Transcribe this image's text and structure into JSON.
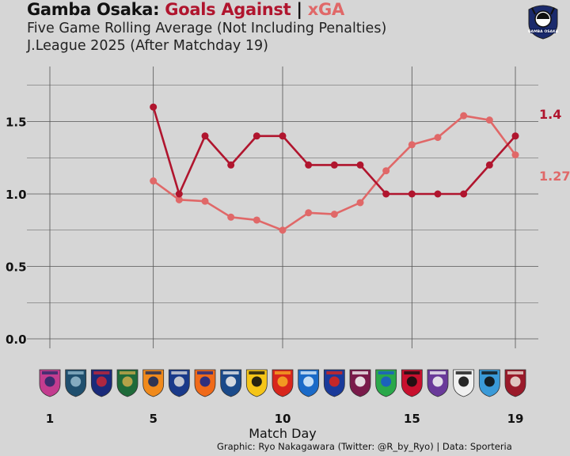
{
  "header": {
    "title_team": "Gamba Osaka:",
    "title_ga": "Goals Against",
    "title_sep": "|",
    "title_xga": "xGA",
    "subtitle_1": "Five Game Rolling Average (Not Including Penalties)",
    "subtitle_2": "J.League 2025 (After Matchday 19)"
  },
  "logo": {
    "text": "GAMBA OSAKA"
  },
  "credit": "Graphic: Ryo Nakagawara (Twitter: @R_by_Ryo) | Data: Sporteria",
  "colors": {
    "ga": "#b0152e",
    "xga": "#e06868",
    "grid": "#555555",
    "background": "#d6d6d6"
  },
  "opponents_icons": [
    "cerezo-osaka-crest",
    "avispa-fukuoka-crest",
    "fc-tokyo-crest",
    "tokyo-verdy-crest",
    "shimizu-s-pulse-crest",
    "yokohama-f-marinos-crest",
    "albirex-niigata-crest",
    "machida-zelvia-crest",
    "kashiwa-reysol-crest",
    "nagoya-grampus-crest",
    "yokohama-fc-crest",
    "fc-tokyo-crest",
    "kyoto-sanga-crest",
    "shonan-bellmare-crest",
    "urawa-reds-crest",
    "sanfrecce-hiroshima-crest",
    "vissel-kobe-crest",
    "kawasaki-frontale-crest",
    "kashima-antlers-crest"
  ],
  "chart_data": {
    "type": "line",
    "title": "",
    "xlabel": "Match Day",
    "ylabel": "",
    "xlim": [
      0.5,
      19.5
    ],
    "ylim": [
      -0.05,
      1.85
    ],
    "x_ticks": [
      1,
      5,
      10,
      15,
      19
    ],
    "x_tick_labels": [
      "1",
      "5",
      "10",
      "15",
      "19"
    ],
    "y_ticks": [
      0.0,
      0.5,
      1.0,
      1.5
    ],
    "y_tick_labels": [
      "0.0",
      "0.5",
      "1.0",
      "1.5"
    ],
    "grid": true,
    "series": [
      {
        "name": "Goals Against",
        "color": "#b0152e",
        "x": [
          5,
          6,
          7,
          8,
          9,
          10,
          11,
          12,
          13,
          14,
          15,
          16,
          17,
          18,
          19
        ],
        "values": [
          1.6,
          1.0,
          1.4,
          1.2,
          1.4,
          1.4,
          1.2,
          1.2,
          1.2,
          1.0,
          1.0,
          1.0,
          1.0,
          1.2,
          1.4
        ],
        "end_label": "1.4"
      },
      {
        "name": "xGA",
        "color": "#e06868",
        "x": [
          5,
          6,
          7,
          8,
          9,
          10,
          11,
          12,
          13,
          14,
          15,
          16,
          17,
          18,
          19
        ],
        "values": [
          1.09,
          0.96,
          0.95,
          0.84,
          0.82,
          0.75,
          0.87,
          0.86,
          0.94,
          1.16,
          1.34,
          1.39,
          1.54,
          1.51,
          1.27
        ],
        "end_label": "1.27"
      }
    ]
  }
}
